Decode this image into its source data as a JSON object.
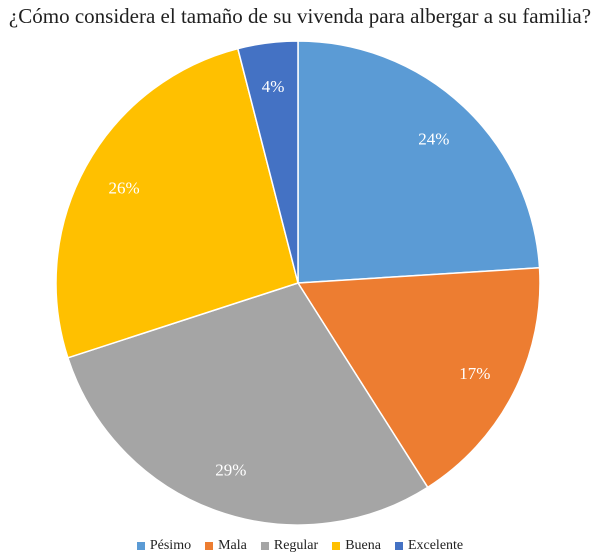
{
  "chart_data": {
    "type": "pie",
    "title": "¿Cómo considera el tamaño de su vivenda para albergar a su familia?",
    "categories": [
      "Pésimo",
      "Mala",
      "Regular",
      "Buena",
      "Excelente"
    ],
    "values": [
      24,
      17,
      29,
      26,
      4
    ],
    "labels": [
      "24%",
      "17%",
      "29%",
      "26%",
      "4%"
    ],
    "colors": [
      "#5B9BD5",
      "#ED7D31",
      "#A5A5A5",
      "#FFC000",
      "#4472C4"
    ],
    "legend_position": "bottom"
  }
}
